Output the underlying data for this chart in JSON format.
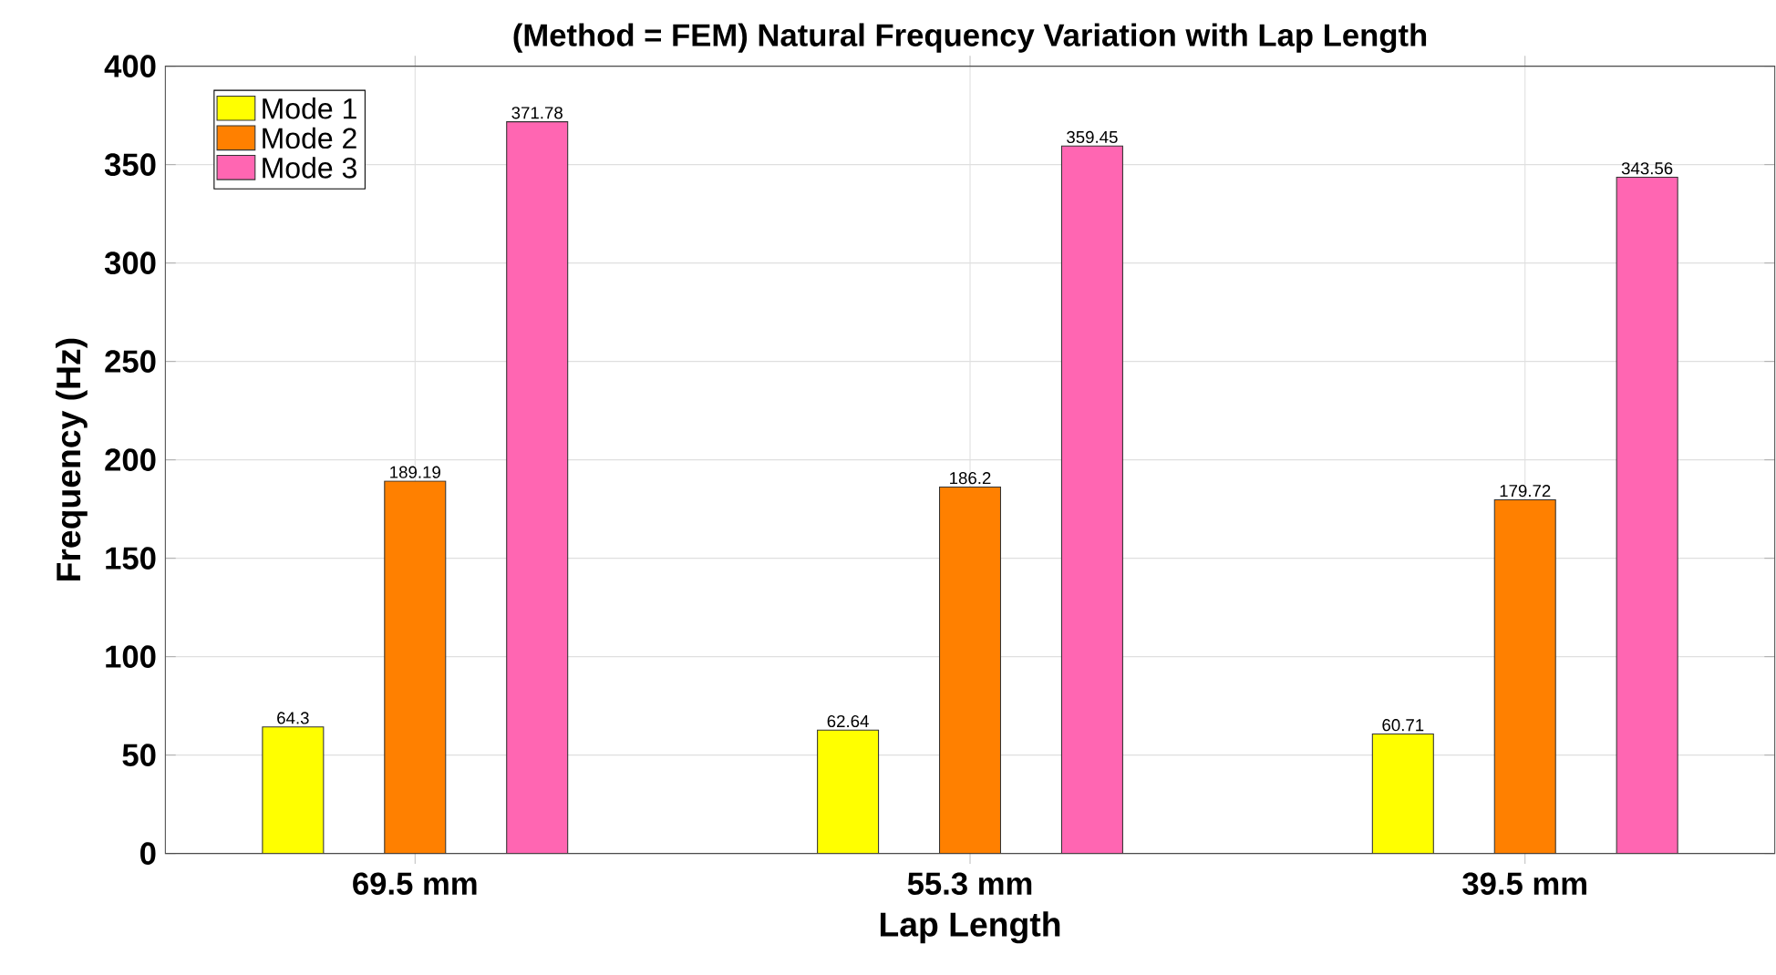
{
  "chart_data": {
    "type": "bar",
    "title": "(Method = FEM) Natural Frequency Variation with Lap Length",
    "xlabel": "Lap Length",
    "ylabel": "Frequency (Hz)",
    "categories": [
      "69.5 mm",
      "55.3 mm",
      "39.5 mm"
    ],
    "series": [
      {
        "name": "Mode 1",
        "color": "#ffff00",
        "values": [
          64.3,
          62.64,
          60.71
        ]
      },
      {
        "name": "Mode 2",
        "color": "#ff8000",
        "values": [
          189.19,
          186.2,
          179.72
        ]
      },
      {
        "name": "Mode 3",
        "color": "#ff66b2",
        "values": [
          371.78,
          359.45,
          343.56
        ]
      }
    ],
    "ylim": [
      0,
      400
    ],
    "yticks": [
      0,
      50,
      100,
      150,
      200,
      250,
      300,
      350,
      400
    ],
    "grid": true,
    "legend": "top left",
    "data_labels": true
  }
}
